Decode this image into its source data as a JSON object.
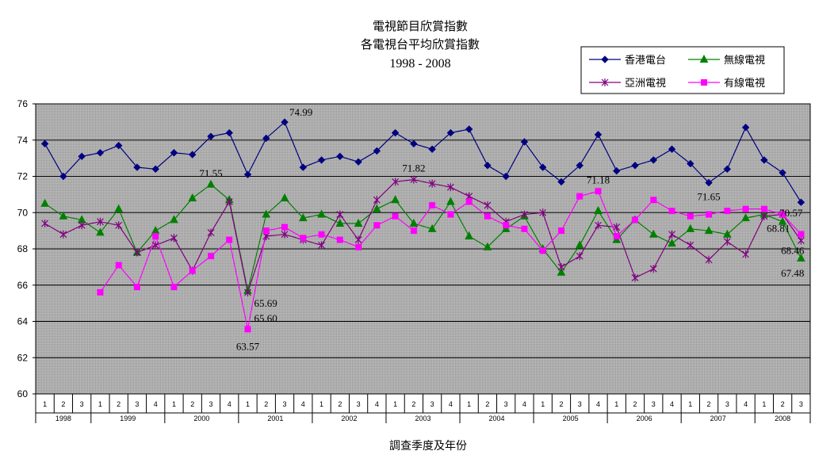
{
  "chart_data": {
    "type": "line",
    "title": "電視節目欣賞指數",
    "subtitle": "各電視台平均欣賞指數",
    "period": "1998 - 2008",
    "xlabel": "調查季度及年份",
    "ylabel": "",
    "ylim": [
      60,
      76
    ],
    "yticks": [
      "60",
      "62",
      "64",
      "66",
      "68",
      "70",
      "72",
      "74",
      "76"
    ],
    "grid": true,
    "legend_position": "top-right",
    "year_groups": [
      {
        "label": "1998",
        "quarters": [
          "1",
          "2",
          "3"
        ]
      },
      {
        "label": "1999",
        "quarters": [
          "1",
          "2",
          "3",
          "4"
        ]
      },
      {
        "label": "2000",
        "quarters": [
          "1",
          "2",
          "3",
          "4"
        ]
      },
      {
        "label": "2001",
        "quarters": [
          "1",
          "2",
          "3",
          "4"
        ]
      },
      {
        "label": "2002",
        "quarters": [
          "1",
          "2",
          "3",
          "4"
        ]
      },
      {
        "label": "2003",
        "quarters": [
          "1",
          "2",
          "3",
          "4"
        ]
      },
      {
        "label": "2004",
        "quarters": [
          "1",
          "2",
          "3",
          "4"
        ]
      },
      {
        "label": "2005",
        "quarters": [
          "1",
          "2",
          "3",
          "4"
        ]
      },
      {
        "label": "2006",
        "quarters": [
          "1",
          "2",
          "3",
          "4"
        ]
      },
      {
        "label": "2007",
        "quarters": [
          "1",
          "2",
          "3",
          "4"
        ]
      },
      {
        "label": "2008",
        "quarters": [
          "1",
          "2",
          "3"
        ]
      }
    ],
    "series": [
      {
        "name": "香港電台",
        "color": "#000080",
        "marker": "diamond",
        "values": [
          73.8,
          72.0,
          73.1,
          73.3,
          73.7,
          72.5,
          72.4,
          73.3,
          73.2,
          74.2,
          74.4,
          72.1,
          74.1,
          74.99,
          72.5,
          72.9,
          73.1,
          72.8,
          73.4,
          74.4,
          73.8,
          73.5,
          74.4,
          74.6,
          72.6,
          72.0,
          73.9,
          72.5,
          71.7,
          72.6,
          74.3,
          72.3,
          72.6,
          72.9,
          73.5,
          72.7,
          71.65,
          72.4,
          74.7,
          72.9,
          72.2,
          70.57
        ]
      },
      {
        "name": "無線電視",
        "color": "#008000",
        "marker": "triangle",
        "values": [
          70.5,
          69.8,
          69.6,
          68.9,
          70.2,
          67.8,
          69.0,
          69.6,
          70.8,
          71.55,
          70.7,
          65.69,
          69.9,
          70.8,
          69.7,
          69.9,
          69.4,
          69.4,
          70.2,
          70.7,
          69.4,
          69.1,
          70.6,
          68.7,
          68.1,
          69.1,
          69.8,
          68.0,
          66.7,
          68.2,
          70.1,
          68.5,
          69.6,
          68.8,
          68.3,
          69.1,
          69.0,
          68.8,
          69.7,
          69.9,
          69.5,
          67.48
        ]
      },
      {
        "name": "亞洲電視",
        "color": "#800080",
        "marker": "star",
        "values": [
          69.4,
          68.8,
          69.3,
          69.5,
          69.3,
          67.8,
          68.2,
          68.6,
          66.8,
          68.9,
          70.6,
          65.6,
          68.7,
          68.8,
          68.5,
          68.2,
          69.9,
          68.5,
          70.7,
          71.7,
          71.82,
          71.6,
          71.4,
          70.9,
          70.4,
          69.5,
          69.9,
          70.0,
          67.0,
          67.6,
          69.3,
          69.2,
          66.4,
          66.9,
          68.8,
          68.2,
          67.4,
          68.4,
          67.7,
          69.8,
          69.9,
          68.46
        ]
      },
      {
        "name": "有線電視",
        "color": "#ff00ff",
        "marker": "square",
        "values": [
          null,
          null,
          null,
          65.6,
          67.1,
          65.9,
          68.7,
          65.9,
          66.8,
          67.6,
          68.5,
          63.57,
          69.0,
          69.2,
          68.6,
          68.8,
          68.5,
          68.1,
          69.3,
          69.8,
          69.0,
          70.4,
          69.9,
          70.6,
          69.8,
          69.3,
          69.1,
          67.9,
          69.0,
          70.9,
          71.18,
          68.7,
          69.6,
          70.7,
          70.1,
          69.8,
          69.9,
          70.1,
          70.2,
          70.2,
          69.9,
          68.81
        ]
      }
    ],
    "annotations": [
      {
        "series": 0,
        "index": 13,
        "text": "74.99"
      },
      {
        "series": 0,
        "index": 36,
        "text": "71.65"
      },
      {
        "series": 0,
        "index": 41,
        "text": "70.57"
      },
      {
        "series": 1,
        "index": 9,
        "text": "71.55"
      },
      {
        "series": 1,
        "index": 11,
        "text": "65.69"
      },
      {
        "series": 1,
        "index": 41,
        "text": "67.48"
      },
      {
        "series": 2,
        "index": 11,
        "text": "65.60"
      },
      {
        "series": 2,
        "index": 20,
        "text": "71.82"
      },
      {
        "series": 2,
        "index": 41,
        "text": "68.46"
      },
      {
        "series": 3,
        "index": 11,
        "text": "63.57"
      },
      {
        "series": 3,
        "index": 30,
        "text": "71.18"
      },
      {
        "series": 3,
        "index": 41,
        "text": "68.81"
      }
    ]
  }
}
